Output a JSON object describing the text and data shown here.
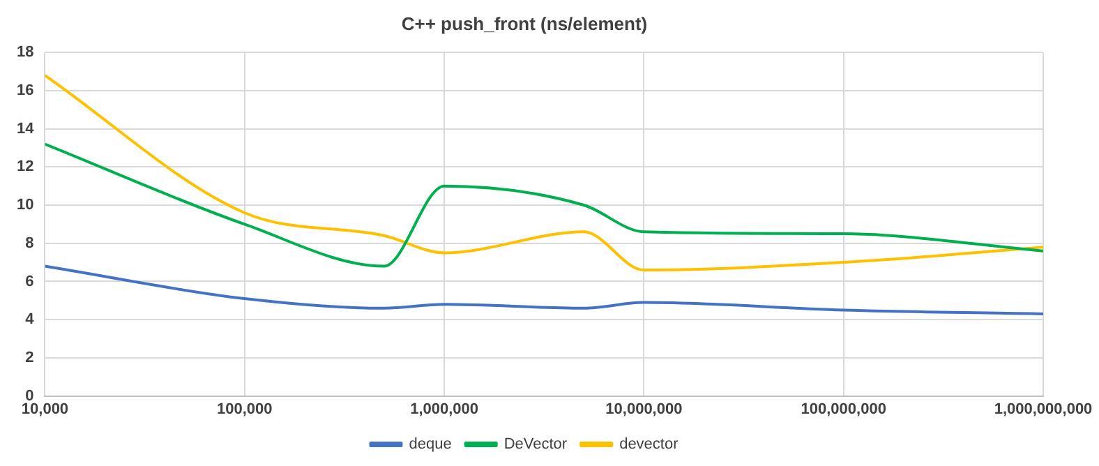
{
  "chart_data": {
    "type": "line",
    "title": "C++ push_front (ns/element)",
    "x": [
      10000,
      100000,
      500000,
      1000000,
      5000000,
      10000000,
      100000000,
      1000000000
    ],
    "series": [
      {
        "name": "deque",
        "color": "#4472c4",
        "values": [
          6.8,
          5.1,
          4.6,
          4.8,
          4.6,
          4.9,
          4.5,
          4.3
        ]
      },
      {
        "name": "DeVector",
        "color": "#00b050",
        "values": [
          13.2,
          9.0,
          6.8,
          11.0,
          10.0,
          8.6,
          8.5,
          7.6
        ]
      },
      {
        "name": "devector",
        "color": "#ffc000",
        "values": [
          16.8,
          9.6,
          8.4,
          7.5,
          8.6,
          6.6,
          7.0,
          7.8
        ]
      }
    ],
    "log": "x",
    "xlim": [
      10000,
      1000000000
    ],
    "xticks": [
      {
        "value": 10000,
        "label": "10,000"
      },
      {
        "value": 100000,
        "label": "100,000"
      },
      {
        "value": 1000000,
        "label": "1,000,000"
      },
      {
        "value": 10000000,
        "label": "10,000,000"
      },
      {
        "value": 100000000,
        "label": "100,000,000"
      },
      {
        "value": 1000000000,
        "label": "1,000,000,000"
      }
    ],
    "ylim": [
      0,
      18
    ],
    "yticks": [
      0,
      2,
      4,
      6,
      8,
      10,
      12,
      14,
      16,
      18
    ],
    "grid": true,
    "legend": "bottom",
    "marker": "none",
    "line_style": "solid"
  }
}
